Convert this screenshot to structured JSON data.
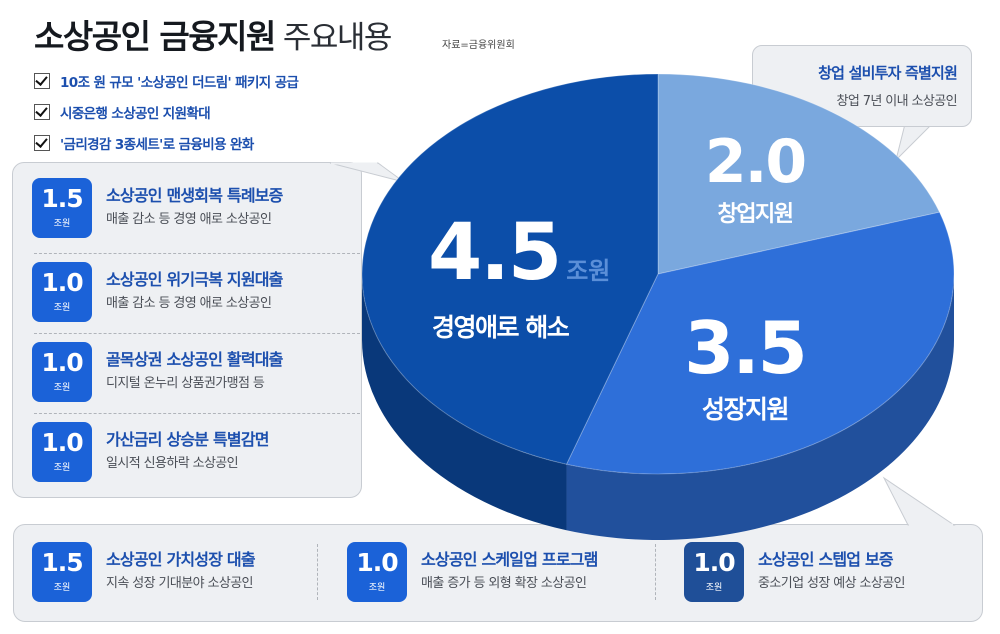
{
  "header": {
    "title_bold": "소상공인 금융지원",
    "title_light": "주요내용",
    "source": "자료=금융위원회"
  },
  "checks": [
    "10조 원 규모 '소상공인 더드림' 패키지 공급",
    "시중은행 소상공인 지원확대",
    "'금리경감 3종세트'로 금융비용 완화"
  ],
  "unit": "조원",
  "left_panel": [
    {
      "amount": "1.5",
      "name": "소상공인 맨생회복 특례보증",
      "desc": "매출 감소 등 경영 애로 소상공인"
    },
    {
      "amount": "1.0",
      "name": "소상공인 위기극복 지원대출",
      "desc": "매출 감소 등 경영 애로 소상공인"
    },
    {
      "amount": "1.0",
      "name": "골목상권 소상공인 활력대출",
      "desc": "디지털 온누리 상품권가맹점 등"
    },
    {
      "amount": "1.0",
      "name": "가산금리 상승분 특별감면",
      "desc": "일시적 신용하락 소상공인"
    }
  ],
  "bottom_panel": [
    {
      "amount": "1.5",
      "name": "소상공인 가치성장 대출",
      "desc": "지속 성장 기대분야 소상공인"
    },
    {
      "amount": "1.0",
      "name": "소상공인 스케일업 프로그램",
      "desc": "매출 증가 등 외형 확장 소상공인"
    },
    {
      "amount": "1.0",
      "name": "소상공인 스텝업 보증",
      "desc": "중소기업 성장 예상 소상공인"
    }
  ],
  "top_bubble": {
    "name": "창업 설비투자 즉별지원",
    "desc": "창업 7년 이내 소상공인"
  },
  "colors": {
    "slice_dark": "#0c4ea9",
    "slice_mid": "#2e6fd9",
    "slice_light": "#7aa8de",
    "text_blue": "#1c4fae",
    "panel_bg": "#eef0f3"
  },
  "chart_data": {
    "type": "pie",
    "title": "",
    "unit": "조원",
    "slices": [
      {
        "label": "경영애로 해소",
        "value": 4.5,
        "display": "4.5",
        "color": "#0c4ea9"
      },
      {
        "label": "창업지원",
        "value": 2.0,
        "display": "2.0",
        "color": "#7aa8de"
      },
      {
        "label": "성장지원",
        "value": 3.5,
        "display": "3.5",
        "color": "#2e6fd9"
      }
    ]
  }
}
